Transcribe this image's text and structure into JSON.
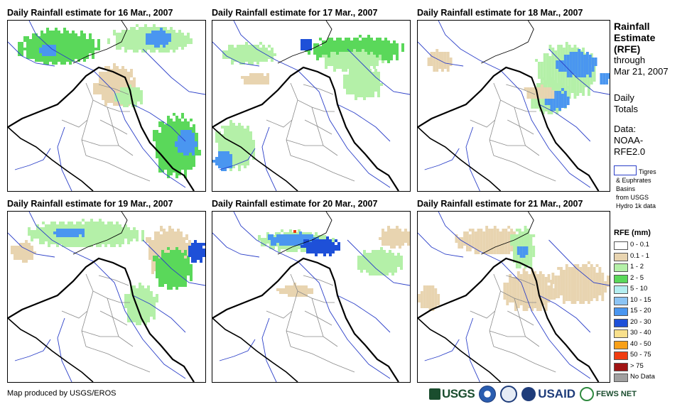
{
  "panels": [
    {
      "title": "Daily Rainfall estimate for 16 Mar., 2007"
    },
    {
      "title": "Daily Rainfall estimate for 17 Mar., 2007"
    },
    {
      "title": "Daily Rainfall estimate for 18 Mar., 2007"
    },
    {
      "title": "Daily Rainfall estimate for 19 Mar., 2007"
    },
    {
      "title": "Daily Rainfall estimate for 20 Mar., 2007"
    },
    {
      "title": "Daily Rainfall estimate for 21 Mar., 2007"
    }
  ],
  "sidebar": {
    "title_line1": "Rainfall",
    "title_line2": "Estimate",
    "title_line3": "(RFE)",
    "through": "through",
    "date": "Mar 21, 2007",
    "daily1": "Daily",
    "daily2": "Totals",
    "data1": "Data:",
    "data2": "NOAA-",
    "data3": "RFE2.0",
    "basin_line1": "Tigres",
    "basin_line2": "& Euphrates",
    "basin_line3": "Basins",
    "basin_line4": "from USGS",
    "basin_line5": "Hydro 1k data"
  },
  "legend": {
    "title": "RFE (mm)",
    "items": [
      {
        "label": "0 - 0.1",
        "color": "#ffffff"
      },
      {
        "label": "0.1 - 1",
        "color": "#e8d4b0"
      },
      {
        "label": "1 - 2",
        "color": "#b4f0a8"
      },
      {
        "label": "2 - 5",
        "color": "#5ad85a"
      },
      {
        "label": "5 - 10",
        "color": "#b4eef0"
      },
      {
        "label": "10 - 15",
        "color": "#8cc4f4"
      },
      {
        "label": "15 - 20",
        "color": "#4a96f0"
      },
      {
        "label": "20 - 30",
        "color": "#1e50d8"
      },
      {
        "label": "30 - 40",
        "color": "#f8e08c"
      },
      {
        "label": "40 - 50",
        "color": "#f8a018"
      },
      {
        "label": "50 - 75",
        "color": "#f03c10"
      },
      {
        "label": "> 75",
        "color": "#a01414"
      },
      {
        "label": "No Data",
        "color": "#a0a0a0"
      }
    ]
  },
  "credit": "Map produced by USGS/EROS",
  "logos": {
    "usgs": "USGS",
    "usaid": "USAID",
    "fews": "FEWS NET"
  }
}
